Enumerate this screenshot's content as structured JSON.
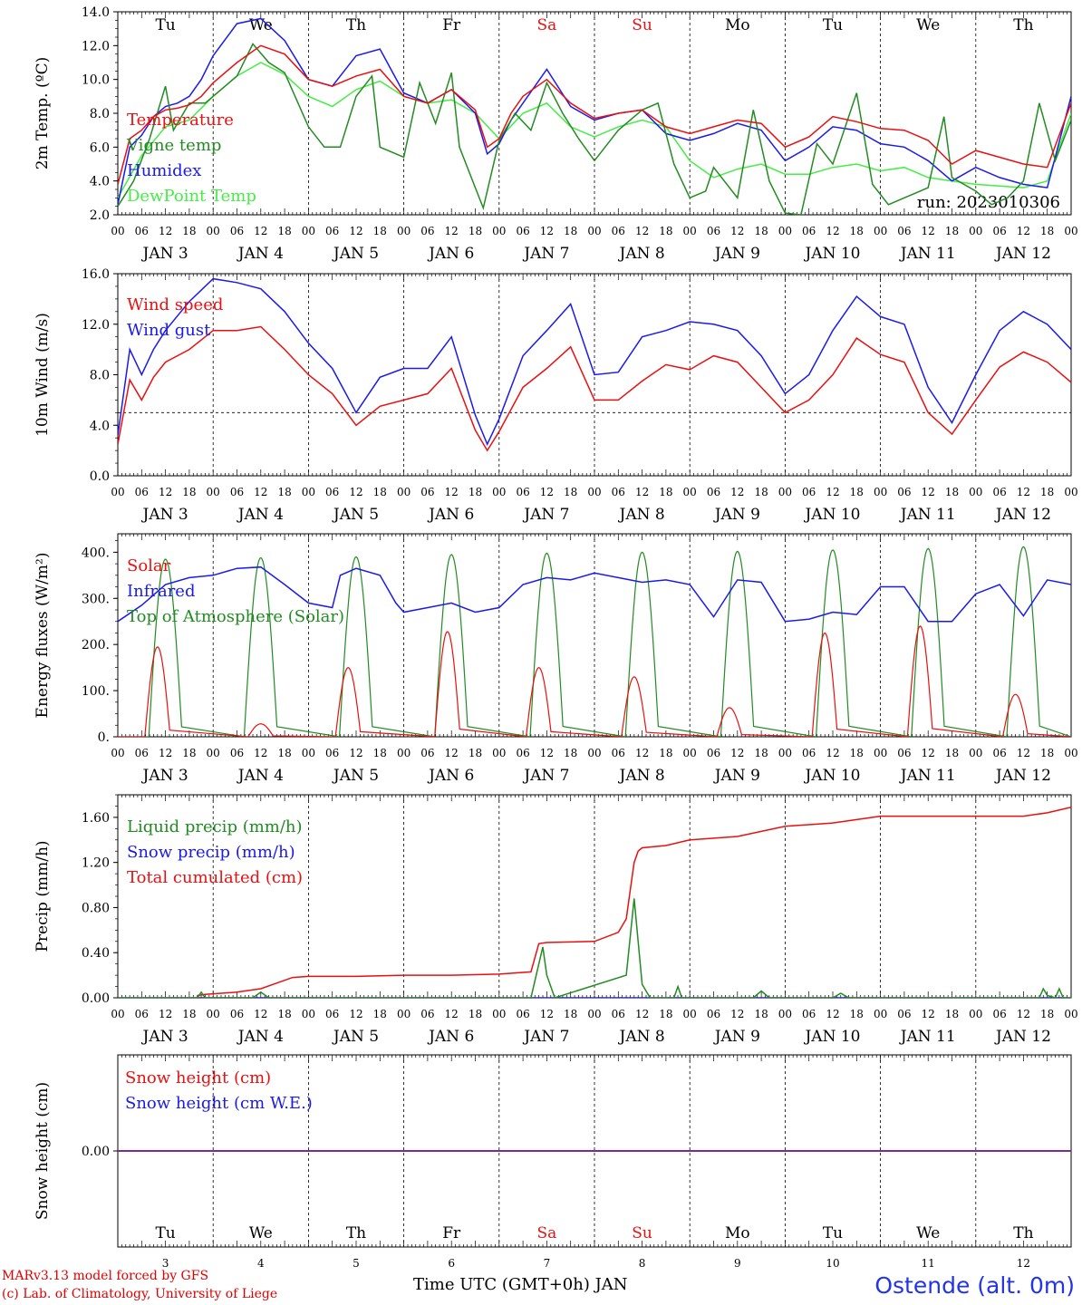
{
  "colors": {
    "red": "#e81010",
    "darkgreen": "#228b22",
    "blue": "#1a1aee",
    "lightgreen": "#44ee44",
    "sunday_red": "#e81010",
    "purple": "#7a2a9a"
  },
  "days": {
    "top_labels": [
      "Tu",
      "We",
      "Th",
      "Fr",
      "Sa",
      "Su",
      "Mo",
      "Tu",
      "We",
      "Th"
    ],
    "weekend_indices": [
      4,
      5
    ],
    "dates": [
      "JAN  3",
      "JAN  4",
      "JAN  5",
      "JAN  6",
      "JAN  7",
      "JAN  8",
      "JAN  9",
      "JAN 10",
      "JAN 11",
      "JAN 12"
    ],
    "day_numbers": [
      "3",
      "4",
      "5",
      "6",
      "7",
      "8",
      "9",
      "10",
      "11",
      "12"
    ],
    "hour_ticks": [
      "00",
      "06",
      "12",
      "18"
    ],
    "final_hour": "00"
  },
  "footer": {
    "credit_line1": "MARv3.13 model forced by GFS",
    "credit_line2": "(c) Lab. of Climatology, University of Liege",
    "xlabel": "Time UTC (GMT+0h) JAN",
    "station": "Ostende (alt. 0m)"
  },
  "chart_data": [
    {
      "id": "temp",
      "type": "line",
      "ylabel": "2m Temp. (ºC)",
      "ylim": [
        2,
        14
      ],
      "yticks": [
        2,
        4,
        6,
        8,
        10,
        12,
        14
      ],
      "ytick_labels": [
        "2.0",
        "4.0",
        "6.0",
        "8.0",
        "10.0",
        "12.0",
        "14.0"
      ],
      "show_day_names": true,
      "annotation": "run: 2023010306",
      "x_unit": "hours since 2023-01-03 00 UTC",
      "series": [
        {
          "name": "Temperature",
          "color": "red",
          "x": [
            0,
            3,
            6,
            9,
            12,
            15,
            18,
            21,
            24,
            30,
            36,
            42,
            48,
            54,
            60,
            66,
            72,
            78,
            84,
            90,
            93,
            96,
            99,
            102,
            108,
            114,
            120,
            126,
            132,
            138,
            144,
            150,
            156,
            162,
            168,
            174,
            180,
            186,
            192,
            198,
            204,
            210,
            216,
            222,
            228,
            234,
            240
          ],
          "y": [
            3.8,
            6.5,
            7.0,
            7.8,
            8.2,
            8.3,
            8.5,
            9.0,
            9.8,
            11.0,
            12.0,
            11.5,
            10.0,
            9.6,
            10.2,
            10.6,
            9.0,
            8.6,
            9.4,
            8.2,
            6.0,
            6.5,
            8.0,
            9.0,
            10.0,
            8.6,
            7.7,
            8.0,
            8.2,
            7.2,
            6.8,
            7.2,
            7.6,
            7.4,
            6.0,
            6.6,
            7.8,
            7.5,
            7.1,
            7.0,
            6.4,
            5.0,
            5.8,
            5.4,
            5.0,
            4.8,
            8.6
          ]
        },
        {
          "name": "Vigne temp",
          "color": "darkgreen",
          "x": [
            0,
            4,
            8,
            12,
            14,
            18,
            22,
            30,
            34,
            38,
            42,
            48,
            52,
            56,
            60,
            64,
            66,
            72,
            76,
            80,
            84,
            86,
            90,
            92,
            96,
            100,
            104,
            108,
            112,
            116,
            120,
            126,
            132,
            136,
            140,
            144,
            148,
            150,
            156,
            160,
            164,
            168,
            172,
            176,
            180,
            186,
            190,
            194,
            198,
            204,
            208,
            210,
            216,
            220,
            224,
            228,
            232,
            236,
            240
          ],
          "y": [
            2.5,
            4.0,
            6.5,
            9.6,
            7.0,
            8.6,
            8.6,
            10.2,
            12.1,
            11.0,
            10.4,
            7.2,
            6.0,
            6.0,
            9.0,
            10.2,
            6.0,
            5.4,
            9.8,
            7.4,
            10.4,
            6.0,
            3.6,
            2.4,
            6.4,
            8.0,
            7.0,
            9.8,
            8.0,
            6.5,
            5.2,
            7.0,
            8.2,
            8.6,
            5.0,
            3.0,
            3.4,
            4.8,
            3.0,
            8.2,
            4.0,
            2.1,
            2.0,
            6.2,
            5.0,
            9.2,
            3.8,
            2.6,
            3.0,
            3.6,
            7.8,
            4.2,
            3.4,
            2.6,
            3.0,
            4.0,
            8.6,
            5.2,
            7.6
          ]
        },
        {
          "name": "Humidex",
          "color": "blue",
          "x": [
            0,
            3,
            6,
            9,
            12,
            15,
            18,
            21,
            24,
            30,
            36,
            42,
            48,
            54,
            60,
            66,
            72,
            78,
            84,
            90,
            93,
            96,
            99,
            102,
            108,
            114,
            120,
            126,
            132,
            138,
            144,
            150,
            156,
            162,
            168,
            174,
            180,
            186,
            192,
            198,
            204,
            210,
            216,
            222,
            228,
            234,
            240
          ],
          "y": [
            2.6,
            6.0,
            6.7,
            7.8,
            8.4,
            8.6,
            9.0,
            10.0,
            11.4,
            13.3,
            13.6,
            12.3,
            10.0,
            9.6,
            11.4,
            11.8,
            9.2,
            8.6,
            9.4,
            8.0,
            5.6,
            6.2,
            7.6,
            8.6,
            10.6,
            8.4,
            7.6,
            8.0,
            8.2,
            6.8,
            6.4,
            6.8,
            7.4,
            7.0,
            5.2,
            6.0,
            7.2,
            7.0,
            6.2,
            6.0,
            5.2,
            4.0,
            4.8,
            4.2,
            3.8,
            3.6,
            9.0
          ]
        },
        {
          "name": "DewPoint Temp",
          "color": "lightgreen",
          "x": [
            0,
            6,
            12,
            18,
            24,
            30,
            36,
            42,
            48,
            54,
            60,
            66,
            72,
            78,
            84,
            90,
            96,
            102,
            108,
            114,
            120,
            126,
            132,
            138,
            144,
            150,
            156,
            162,
            168,
            174,
            180,
            186,
            192,
            198,
            204,
            210,
            216,
            222,
            228,
            234,
            240
          ],
          "y": [
            3.0,
            5.5,
            7.2,
            7.6,
            9.0,
            10.2,
            11.0,
            10.3,
            9.0,
            8.4,
            9.4,
            9.9,
            9.0,
            8.6,
            8.8,
            8.0,
            6.5,
            8.0,
            8.6,
            7.2,
            6.6,
            7.2,
            7.6,
            7.2,
            5.2,
            4.2,
            4.7,
            5.0,
            4.4,
            4.4,
            4.8,
            5.0,
            4.6,
            4.8,
            4.2,
            4.0,
            3.8,
            3.7,
            3.6,
            4.0,
            8.0
          ]
        }
      ]
    },
    {
      "id": "wind",
      "type": "line",
      "ylabel": "10m Wind (m/s)",
      "ylim": [
        0,
        16
      ],
      "yticks": [
        0,
        4,
        8,
        12,
        16
      ],
      "ytick_labels": [
        "0.0",
        "4.0",
        "8.0",
        "12.0",
        "16.0"
      ],
      "reference_line": 5,
      "x_unit": "hours since 2023-01-03 00 UTC",
      "series": [
        {
          "name": "Wind speed",
          "color": "red",
          "x": [
            0,
            3,
            6,
            9,
            12,
            18,
            24,
            30,
            36,
            42,
            48,
            54,
            60,
            66,
            72,
            78,
            84,
            90,
            93,
            96,
            102,
            108,
            114,
            120,
            126,
            132,
            138,
            144,
            150,
            156,
            162,
            168,
            174,
            180,
            186,
            192,
            198,
            204,
            210,
            216,
            222,
            228,
            234,
            240
          ],
          "y": [
            2.5,
            7.6,
            6.0,
            7.8,
            9.0,
            10.0,
            11.5,
            11.5,
            11.8,
            10.0,
            8.0,
            6.5,
            4.0,
            5.5,
            6.0,
            6.5,
            8.5,
            3.6,
            2.0,
            3.5,
            7.0,
            8.5,
            10.2,
            6.0,
            6.0,
            7.5,
            8.8,
            8.4,
            9.5,
            9.0,
            7.0,
            5.0,
            6.0,
            8.0,
            10.9,
            9.6,
            9.0,
            5.0,
            3.3,
            6.0,
            8.6,
            9.8,
            9.0,
            7.4
          ]
        },
        {
          "name": "Wind gust",
          "color": "blue",
          "x": [
            0,
            3,
            6,
            9,
            12,
            18,
            24,
            30,
            36,
            42,
            48,
            54,
            60,
            66,
            72,
            78,
            84,
            90,
            93,
            96,
            102,
            108,
            114,
            120,
            126,
            132,
            138,
            144,
            150,
            156,
            162,
            168,
            174,
            180,
            186,
            192,
            198,
            204,
            210,
            216,
            222,
            228,
            234,
            240
          ],
          "y": [
            3.2,
            10.0,
            8.0,
            10.0,
            11.5,
            13.8,
            15.6,
            15.3,
            14.8,
            13.0,
            10.5,
            8.5,
            5.0,
            7.8,
            8.5,
            8.5,
            11.0,
            4.8,
            2.5,
            4.5,
            9.5,
            11.5,
            13.6,
            8.0,
            8.2,
            11.0,
            11.5,
            12.2,
            12.0,
            11.5,
            9.5,
            6.5,
            8.0,
            11.5,
            14.2,
            12.6,
            12.0,
            7.0,
            4.2,
            8.0,
            11.5,
            13.0,
            12.0,
            10.0
          ]
        }
      ]
    },
    {
      "id": "flux",
      "type": "line",
      "ylabel": "Energy fluxes (W/m²)",
      "ylim": [
        0,
        440
      ],
      "yticks": [
        0,
        100,
        200,
        300,
        400
      ],
      "ytick_labels": [
        "0.",
        "100.",
        "200.",
        "300.",
        "400."
      ],
      "x_unit": "hours since 2023-01-03 00 UTC",
      "series": [
        {
          "name": "Solar",
          "color": "red",
          "type": "daily-peaks",
          "peak_hour": [
            10,
            36,
            58,
            83,
            106,
            130,
            154,
            178,
            202,
            226
          ],
          "peak_value": [
            195,
            28,
            150,
            228,
            150,
            130,
            63,
            225,
            240,
            92
          ]
        },
        {
          "name": "Infrared",
          "color": "blue",
          "x": [
            0,
            6,
            12,
            18,
            24,
            30,
            36,
            42,
            48,
            54,
            56,
            60,
            66,
            70,
            72,
            78,
            84,
            90,
            96,
            102,
            108,
            114,
            120,
            126,
            132,
            138,
            144,
            150,
            156,
            162,
            168,
            174,
            180,
            186,
            192,
            198,
            204,
            210,
            216,
            222,
            228,
            234,
            240
          ],
          "y": [
            250,
            285,
            330,
            345,
            350,
            365,
            368,
            330,
            290,
            280,
            350,
            365,
            350,
            290,
            270,
            280,
            290,
            270,
            280,
            330,
            345,
            340,
            355,
            345,
            335,
            340,
            330,
            260,
            340,
            335,
            250,
            255,
            270,
            265,
            325,
            325,
            250,
            250,
            310,
            330,
            262,
            340,
            330
          ]
        },
        {
          "name": "Top of Atmosphere (Solar)",
          "color": "darkgreen",
          "type": "daily-peaks",
          "peak_hour": [
            12,
            36,
            60,
            84,
            108,
            132,
            156,
            180,
            204,
            228
          ],
          "peak_value": [
            385,
            388,
            390,
            395,
            398,
            400,
            402,
            405,
            408,
            412
          ]
        }
      ]
    },
    {
      "id": "precip",
      "type": "line",
      "ylabel": "Precip (mm/h)",
      "ylim": [
        0,
        1.8
      ],
      "yticks": [
        0,
        0.4,
        0.8,
        1.2,
        1.6
      ],
      "ytick_labels": [
        "0.00",
        "0.40",
        "0.80",
        "1.20",
        "1.60"
      ],
      "x_unit": "hours since 2023-01-03 00 UTC",
      "series": [
        {
          "name": "Liquid precip (mm/h)",
          "color": "darkgreen",
          "x": [
            0,
            20,
            21,
            22,
            34,
            36,
            38,
            104,
            106,
            107,
            108,
            110,
            128,
            130,
            131,
            132,
            134,
            140,
            141,
            142,
            160,
            162,
            164,
            180,
            182,
            184,
            232,
            233,
            234,
            236,
            237,
            238,
            240
          ],
          "y": [
            0,
            0,
            0.05,
            0,
            0,
            0.05,
            0,
            0,
            0.3,
            0.45,
            0.2,
            0,
            0.2,
            0.88,
            0.5,
            0.12,
            0,
            0,
            0.1,
            0,
            0,
            0.06,
            0,
            0,
            0.04,
            0,
            0,
            0.08,
            0.02,
            0,
            0.08,
            0,
            0
          ]
        },
        {
          "name": "Snow precip (mm/h)",
          "color": "blue",
          "x": [
            0,
            240
          ],
          "y": [
            0,
            0
          ]
        },
        {
          "name": "Total cumulated (cm)",
          "color": "red",
          "x": [
            20,
            22,
            30,
            36,
            40,
            44,
            48,
            60,
            72,
            84,
            96,
            104,
            106,
            108,
            120,
            126,
            128,
            129,
            130,
            131,
            132,
            138,
            144,
            156,
            168,
            180,
            192,
            204,
            216,
            228,
            234,
            240
          ],
          "y": [
            0.02,
            0.03,
            0.05,
            0.08,
            0.13,
            0.18,
            0.19,
            0.19,
            0.2,
            0.2,
            0.21,
            0.23,
            0.48,
            0.49,
            0.5,
            0.58,
            0.7,
            0.95,
            1.2,
            1.3,
            1.33,
            1.35,
            1.4,
            1.43,
            1.52,
            1.55,
            1.61,
            1.61,
            1.61,
            1.61,
            1.64,
            1.69
          ]
        }
      ]
    },
    {
      "id": "snow",
      "type": "line",
      "ylabel": "Snow height (cm)",
      "yticks": [
        0
      ],
      "ytick_labels": [
        "0.00"
      ],
      "ylim": [
        -1,
        1
      ],
      "show_day_names": true,
      "x_unit": "hours since 2023-01-03 00 UTC",
      "series": [
        {
          "name": "Snow height (cm)",
          "color": "red",
          "x": [
            0,
            240
          ],
          "y": [
            0,
            0
          ]
        },
        {
          "name": "Snow height (cm W.E.)",
          "color": "blue",
          "x": [
            0,
            240
          ],
          "y": [
            0,
            0
          ]
        }
      ]
    }
  ]
}
